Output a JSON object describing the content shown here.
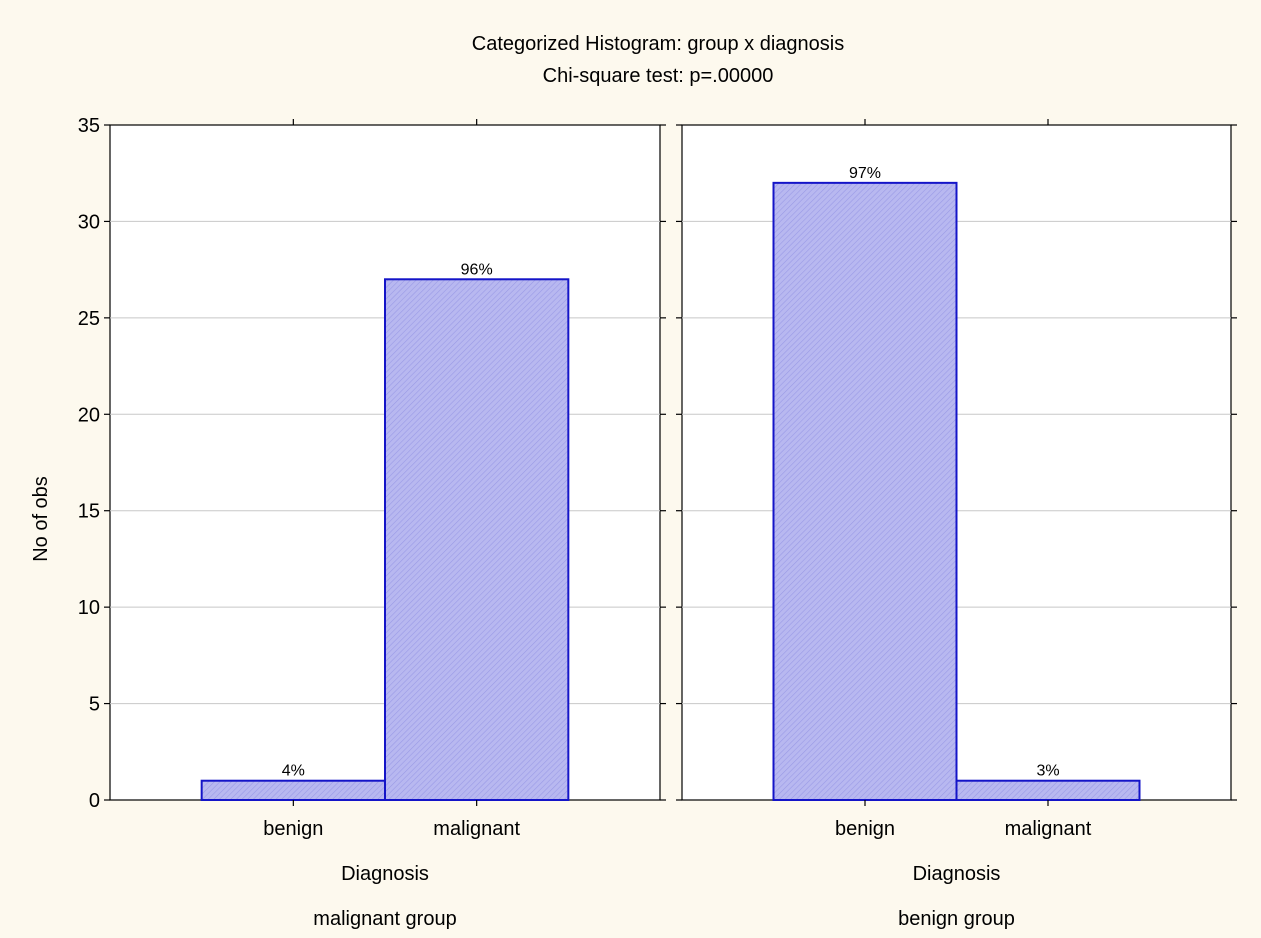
{
  "chart_data": {
    "type": "bar",
    "title": "Categorized Histogram: group x diagnosis",
    "subtitle": "Chi-square test: p=.00000",
    "ylabel": "No of obs",
    "ylim": [
      0,
      35
    ],
    "yticks": [
      0,
      5,
      10,
      15,
      20,
      25,
      30,
      35
    ],
    "grid": true,
    "bar_fill": "#b8b8f0",
    "bar_stroke": "#1414c8",
    "panels": [
      {
        "group_label": "malignant group",
        "xlabel": "Diagnosis",
        "categories": [
          "benign",
          "malignant"
        ],
        "values": [
          1,
          27
        ],
        "labels": [
          "4%",
          "96%"
        ]
      },
      {
        "group_label": "benign group",
        "xlabel": "Diagnosis",
        "categories": [
          "benign",
          "malignant"
        ],
        "values": [
          32,
          1
        ],
        "labels": [
          "97%",
          "3%"
        ]
      }
    ]
  }
}
